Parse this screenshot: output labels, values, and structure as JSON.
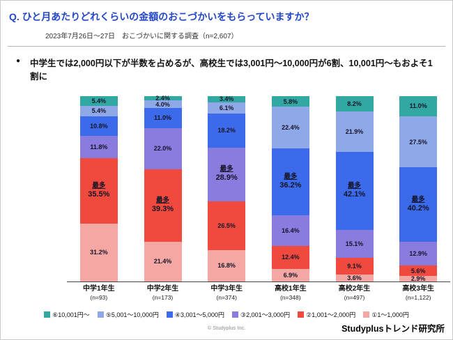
{
  "header": {
    "title": "Q. ひと月あたりどれくらいの金額のおこづかいをもらっていますか？",
    "subtitle": "2023年7月26日～27日　おこづかいに関する調査（n=2,607）"
  },
  "highlight": {
    "bullet": "●",
    "text": "中学生では2,000円以下が半数を占めるが、高校生では3,001円～10,000円が6割、10,001円～もおよそ1割に"
  },
  "chart_data": {
    "type": "bar",
    "stacked": true,
    "unit": "%",
    "ylim": [
      0,
      100
    ],
    "legend_position": "bottom",
    "max_label": "最多",
    "categories": [
      {
        "label": "中学1年生",
        "n": "(n=93)"
      },
      {
        "label": "中学2年生",
        "n": "(n=173)"
      },
      {
        "label": "中学3年生",
        "n": "(n=374)"
      },
      {
        "label": "高校1年生",
        "n": "(n=348)"
      },
      {
        "label": "高校2年生",
        "n": "(n=497)"
      },
      {
        "label": "高校3年生",
        "n": "(n=1,122)"
      }
    ],
    "series": [
      {
        "name": "⑥10,001円～",
        "color": "#31a8a2",
        "values": [
          5.4,
          2.4,
          3.4,
          5.8,
          8.2,
          11.0
        ]
      },
      {
        "name": "⑤5,001～10,000円",
        "color": "#8fa8e8",
        "values": [
          5.4,
          4.0,
          6.1,
          22.4,
          21.9,
          27.5
        ]
      },
      {
        "name": "④3,001～5,000円",
        "color": "#3b6bea",
        "values": [
          10.8,
          11.0,
          18.2,
          36.2,
          42.1,
          40.2
        ]
      },
      {
        "name": "③2,001～3,000円",
        "color": "#8a7bde",
        "values": [
          11.8,
          22.0,
          28.9,
          16.4,
          15.1,
          12.9
        ]
      },
      {
        "name": "②1,001～2,000円",
        "color": "#f04a3e",
        "values": [
          35.5,
          39.3,
          26.5,
          12.4,
          9.1,
          5.6
        ]
      },
      {
        "name": "①1～1,000円",
        "color": "#f5a8a3",
        "values": [
          31.2,
          21.4,
          16.8,
          6.9,
          3.6,
          2.9
        ]
      }
    ],
    "max_series_index": [
      4,
      4,
      3,
      2,
      2,
      2
    ]
  },
  "footer": {
    "copyright": "© Studyplus Inc.",
    "brand": "Studyplusトレンド研究所"
  }
}
